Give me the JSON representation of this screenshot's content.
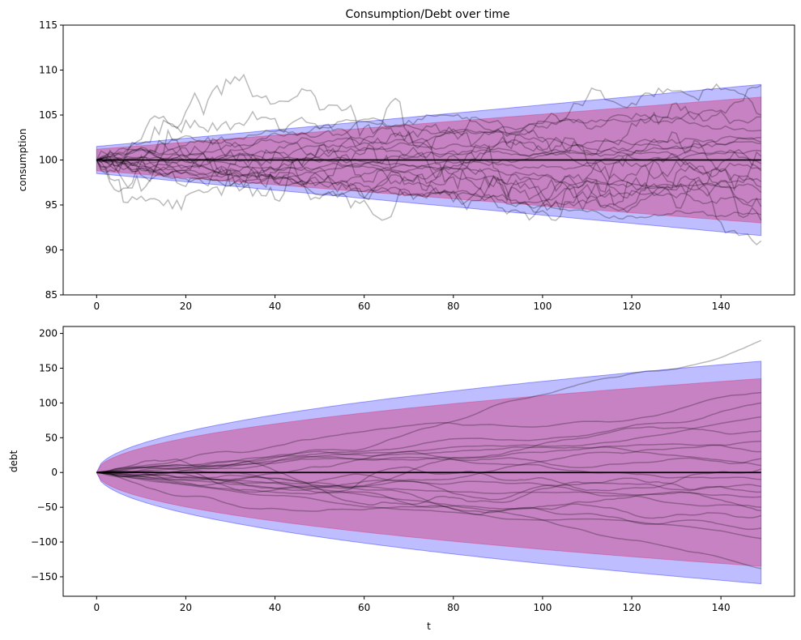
{
  "figure": {
    "title": "Consumption/Debt over time"
  },
  "chart_data": [
    {
      "type": "line",
      "title": "Consumption/Debt over time",
      "xlabel": "",
      "ylabel": "consumption",
      "xlim": [
        -7.5,
        156.5
      ],
      "ylim": [
        85,
        115
      ],
      "xticks": [
        0,
        20,
        40,
        60,
        80,
        100,
        120,
        140
      ],
      "yticks": [
        85,
        90,
        95,
        100,
        105,
        110,
        115
      ],
      "mean": 100,
      "bands": [
        {
          "name": "outer",
          "color": "#0000ff",
          "lower_start": 98.5,
          "lower_end": 91.6,
          "upper_start": 101.5,
          "upper_end": 108.4
        },
        {
          "name": "inner",
          "color": "#d62a6a",
          "lower_start": 98.8,
          "lower_end": 93.0,
          "upper_start": 101.2,
          "upper_end": 107.0
        }
      ],
      "paths": [
        {
          "end": 91.0,
          "max_dev": 10.5,
          "seed": 3
        },
        {
          "end": 108.3,
          "max_dev": 8.5,
          "seed": 7
        },
        {
          "end": 104.8,
          "max_dev": 5.0,
          "seed": 11
        },
        {
          "end": 103.3,
          "max_dev": 4.0,
          "seed": 13
        },
        {
          "end": 102.5,
          "max_dev": 4.0,
          "seed": 17
        },
        {
          "end": 101.8,
          "max_dev": 3.5,
          "seed": 19
        },
        {
          "end": 101.0,
          "max_dev": 3.0,
          "seed": 23
        },
        {
          "end": 100.4,
          "max_dev": 4.5,
          "seed": 29
        },
        {
          "end": 99.6,
          "max_dev": 3.5,
          "seed": 31
        },
        {
          "end": 98.8,
          "max_dev": 4.0,
          "seed": 37
        },
        {
          "end": 97.6,
          "max_dev": 4.0,
          "seed": 41
        },
        {
          "end": 96.4,
          "max_dev": 4.5,
          "seed": 43
        },
        {
          "end": 95.6,
          "max_dev": 4.0,
          "seed": 47
        },
        {
          "end": 94.8,
          "max_dev": 5.0,
          "seed": 53
        },
        {
          "end": 93.9,
          "max_dev": 5.5,
          "seed": 59
        },
        {
          "end": 93.3,
          "max_dev": 6.5,
          "seed": 61
        },
        {
          "end": 105.0,
          "max_dev": 6.0,
          "seed": 67
        },
        {
          "end": 99.0,
          "max_dev": 4.5,
          "seed": 71
        },
        {
          "end": 102.0,
          "max_dev": 4.5,
          "seed": 73
        },
        {
          "end": 97.0,
          "max_dev": 3.5,
          "seed": 79
        }
      ],
      "n_points": 150
    },
    {
      "type": "line",
      "title": "",
      "xlabel": "t",
      "ylabel": "debt",
      "xlim": [
        -7.5,
        156.5
      ],
      "ylim": [
        -178,
        210
      ],
      "xticks": [
        0,
        20,
        40,
        60,
        80,
        100,
        120,
        140
      ],
      "yticks": [
        -150,
        -100,
        -50,
        0,
        50,
        100,
        150,
        200
      ],
      "mean": 0,
      "bands": [
        {
          "name": "outer",
          "color": "#0000ff",
          "lower_start": 0,
          "lower_end": -160,
          "upper_start": 0,
          "upper_end": 160
        },
        {
          "name": "inner",
          "color": "#d62a6a",
          "lower_start": 0,
          "lower_end": -135,
          "upper_start": 0,
          "upper_end": 135
        }
      ],
      "paths": [
        {
          "end": 190,
          "max_dev": 60,
          "seed": 5
        },
        {
          "end": 115,
          "max_dev": 35,
          "seed": 9
        },
        {
          "end": 100,
          "max_dev": 30,
          "seed": 14
        },
        {
          "end": 45,
          "max_dev": 40,
          "seed": 18
        },
        {
          "end": 20,
          "max_dev": 35,
          "seed": 22
        },
        {
          "end": 5,
          "max_dev": 40,
          "seed": 26
        },
        {
          "end": -10,
          "max_dev": 35,
          "seed": 30
        },
        {
          "end": -28,
          "max_dev": 35,
          "seed": 34
        },
        {
          "end": -35,
          "max_dev": 40,
          "seed": 38
        },
        {
          "end": -50,
          "max_dev": 30,
          "seed": 42
        },
        {
          "end": -55,
          "max_dev": 35,
          "seed": 46
        },
        {
          "end": -62,
          "max_dev": 30,
          "seed": 50
        },
        {
          "end": -138,
          "max_dev": 45,
          "seed": 54
        },
        {
          "end": 60,
          "max_dev": 40,
          "seed": 58
        },
        {
          "end": -80,
          "max_dev": 40,
          "seed": 62
        },
        {
          "end": 30,
          "max_dev": 30,
          "seed": 66
        },
        {
          "end": -20,
          "max_dev": 30,
          "seed": 70
        },
        {
          "end": 80,
          "max_dev": 35,
          "seed": 74
        },
        {
          "end": -95,
          "max_dev": 40,
          "seed": 78
        },
        {
          "end": 10,
          "max_dev": 30,
          "seed": 82
        }
      ],
      "n_points": 150
    }
  ]
}
